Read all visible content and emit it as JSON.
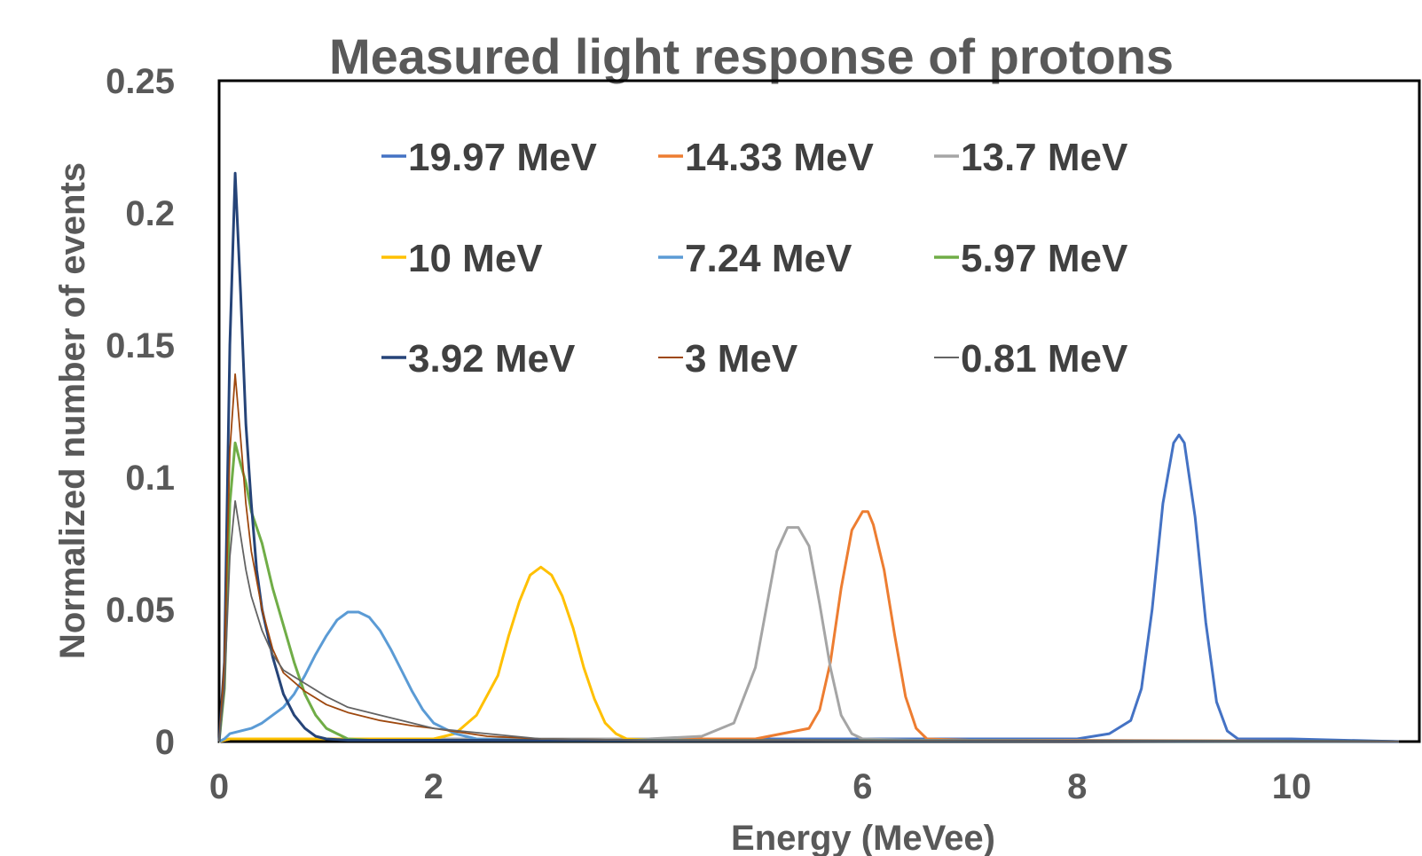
{
  "chart_data": {
    "type": "line",
    "title": "Measured light response of protons",
    "xlabel": "Energy (MeVee)",
    "ylabel": "Normalized number of events",
    "xlim": [
      0,
      11
    ],
    "ylim": [
      0,
      0.25
    ],
    "x_ticks": [
      "0",
      "2",
      "4",
      "6",
      "8",
      "10"
    ],
    "y_ticks": [
      "0",
      "0.05",
      "0.1",
      "0.15",
      "0.2",
      "0.25"
    ],
    "grid": false,
    "legend_position": "top-center",
    "series": [
      {
        "name": "19.97 MeV",
        "color": "#4472C4",
        "x": [
          0,
          0.1,
          1,
          2,
          3,
          4,
          5,
          6,
          7,
          7.5,
          8,
          8.3,
          8.5,
          8.6,
          8.7,
          8.8,
          8.9,
          8.95,
          9.0,
          9.1,
          9.2,
          9.3,
          9.4,
          9.5,
          10,
          11
        ],
        "y": [
          0,
          0.001,
          0.001,
          0.001,
          0.001,
          0.001,
          0.001,
          0.001,
          0.001,
          0.001,
          0.001,
          0.003,
          0.008,
          0.02,
          0.05,
          0.09,
          0.113,
          0.116,
          0.113,
          0.085,
          0.045,
          0.015,
          0.004,
          0.001,
          0.001,
          0
        ]
      },
      {
        "name": "14.33 MeV",
        "color": "#ED7D31",
        "x": [
          0,
          0.1,
          1,
          2,
          3,
          4,
          5,
          5.5,
          5.6,
          5.7,
          5.8,
          5.9,
          6.0,
          6.05,
          6.1,
          6.2,
          6.3,
          6.4,
          6.5,
          6.6,
          7,
          8,
          11
        ],
        "y": [
          0,
          0.001,
          0.001,
          0.001,
          0.001,
          0.001,
          0.001,
          0.005,
          0.012,
          0.03,
          0.058,
          0.08,
          0.087,
          0.087,
          0.082,
          0.065,
          0.04,
          0.017,
          0.005,
          0.001,
          0.0005,
          0.0005,
          0
        ]
      },
      {
        "name": "13.7 MeV",
        "color": "#A5A5A5",
        "x": [
          0,
          0.1,
          1,
          2,
          3,
          4,
          4.5,
          4.8,
          5.0,
          5.1,
          5.2,
          5.3,
          5.4,
          5.5,
          5.6,
          5.7,
          5.8,
          5.9,
          6.0,
          6.5,
          11
        ],
        "y": [
          0,
          0.001,
          0.001,
          0.001,
          0.001,
          0.001,
          0.002,
          0.007,
          0.028,
          0.05,
          0.072,
          0.081,
          0.081,
          0.074,
          0.052,
          0.028,
          0.01,
          0.003,
          0.001,
          0.0005,
          0
        ]
      },
      {
        "name": "10 MeV",
        "color": "#FFC000",
        "x": [
          0,
          0.1,
          1,
          2,
          2.2,
          2.4,
          2.6,
          2.7,
          2.8,
          2.9,
          3.0,
          3.1,
          3.2,
          3.3,
          3.4,
          3.5,
          3.6,
          3.7,
          3.8,
          4,
          11
        ],
        "y": [
          0,
          0.001,
          0.001,
          0.001,
          0.003,
          0.01,
          0.025,
          0.04,
          0.053,
          0.063,
          0.066,
          0.063,
          0.055,
          0.043,
          0.028,
          0.016,
          0.007,
          0.003,
          0.001,
          0.0005,
          0
        ]
      },
      {
        "name": "7.24 MeV",
        "color": "#5B9BD5",
        "x": [
          0,
          0.05,
          0.1,
          0.2,
          0.3,
          0.4,
          0.5,
          0.6,
          0.7,
          0.8,
          0.9,
          1.0,
          1.1,
          1.2,
          1.3,
          1.4,
          1.5,
          1.6,
          1.7,
          1.8,
          1.9,
          2.0,
          2.2,
          2.4,
          2.8,
          3.5,
          11
        ],
        "y": [
          0,
          0.001,
          0.003,
          0.004,
          0.005,
          0.007,
          0.01,
          0.013,
          0.018,
          0.025,
          0.033,
          0.04,
          0.046,
          0.049,
          0.049,
          0.047,
          0.042,
          0.035,
          0.027,
          0.019,
          0.012,
          0.007,
          0.003,
          0.001,
          0.0005,
          0.0005,
          0
        ]
      },
      {
        "name": "5.97 MeV",
        "color": "#70AD47",
        "x": [
          0,
          0.05,
          0.1,
          0.15,
          0.2,
          0.25,
          0.3,
          0.4,
          0.5,
          0.6,
          0.7,
          0.8,
          0.9,
          1.0,
          1.1,
          1.2,
          1.4,
          2,
          11
        ],
        "y": [
          0,
          0.02,
          0.09,
          0.113,
          0.105,
          0.098,
          0.087,
          0.075,
          0.058,
          0.044,
          0.03,
          0.018,
          0.01,
          0.005,
          0.003,
          0.001,
          0.0005,
          0.0005,
          0
        ]
      },
      {
        "name": "3.92 MeV",
        "color": "#264478",
        "x": [
          0,
          0.05,
          0.1,
          0.15,
          0.2,
          0.25,
          0.3,
          0.35,
          0.4,
          0.5,
          0.6,
          0.7,
          0.8,
          0.9,
          1.0,
          1.2,
          2,
          11
        ],
        "y": [
          0,
          0.03,
          0.15,
          0.215,
          0.17,
          0.12,
          0.09,
          0.065,
          0.05,
          0.032,
          0.018,
          0.01,
          0.005,
          0.002,
          0.001,
          0.0005,
          0.0005,
          0
        ]
      },
      {
        "name": "3 MeV",
        "color": "#9E480E",
        "x": [
          0,
          0.05,
          0.1,
          0.15,
          0.2,
          0.25,
          0.3,
          0.4,
          0.5,
          0.6,
          0.8,
          1.0,
          1.2,
          1.5,
          1.8,
          2.0,
          2.5,
          3,
          4,
          11
        ],
        "y": [
          0,
          0.03,
          0.11,
          0.139,
          0.115,
          0.09,
          0.072,
          0.05,
          0.035,
          0.026,
          0.019,
          0.014,
          0.011,
          0.008,
          0.006,
          0.005,
          0.002,
          0.001,
          0.0005,
          0
        ]
      },
      {
        "name": "0.81 MeV",
        "color": "#636363",
        "x": [
          0,
          0.05,
          0.1,
          0.15,
          0.2,
          0.25,
          0.3,
          0.4,
          0.5,
          0.6,
          0.8,
          1.0,
          1.2,
          1.5,
          1.8,
          2.0,
          2.5,
          3,
          4,
          11
        ],
        "y": [
          0,
          0.02,
          0.07,
          0.091,
          0.078,
          0.065,
          0.055,
          0.042,
          0.033,
          0.027,
          0.022,
          0.017,
          0.013,
          0.01,
          0.007,
          0.005,
          0.003,
          0.001,
          0.0005,
          0
        ]
      }
    ]
  }
}
